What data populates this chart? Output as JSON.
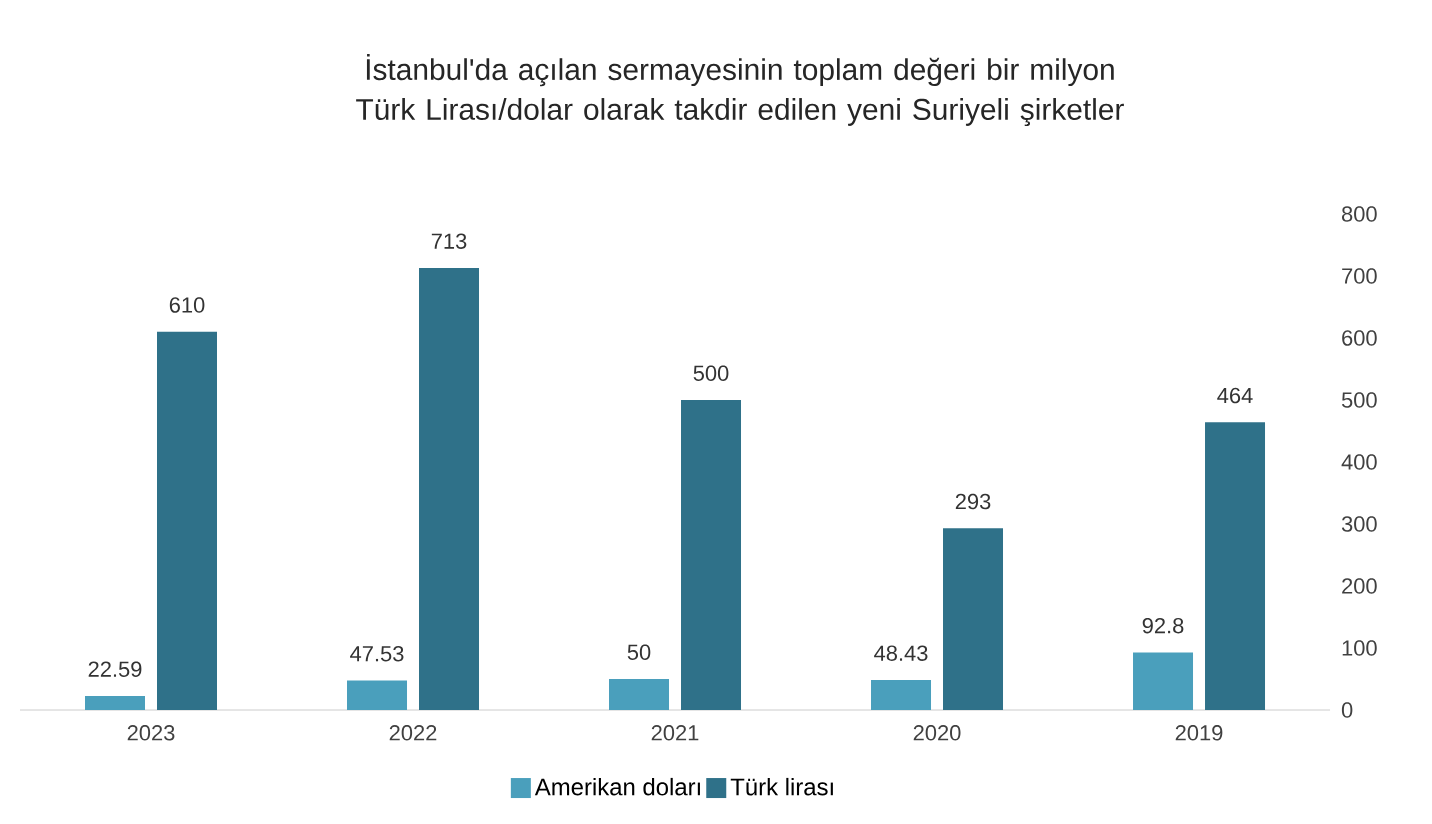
{
  "chart_data": {
    "type": "bar",
    "title": "İstanbul'da açılan sermayesinin toplam değeri bir milyon Türk Lirası/dolar olarak takdir edilen yeni Suriyeli şirketler",
    "categories": [
      "2023",
      "2022",
      "2021",
      "2020",
      "2019"
    ],
    "series": [
      {
        "name": "Amerikan doları",
        "color": "#4a9fbc",
        "values": [
          22.59,
          47.53,
          50,
          48.43,
          92.8
        ]
      },
      {
        "name": "Türk lirası",
        "color": "#2f7189",
        "values": [
          610,
          713,
          500,
          293,
          464
        ]
      }
    ],
    "ylim": [
      0,
      800
    ],
    "yticks": [
      0,
      100,
      200,
      300,
      400,
      500,
      600,
      700,
      800
    ],
    "data_labels": true,
    "legend": "bottom",
    "grid": false
  }
}
